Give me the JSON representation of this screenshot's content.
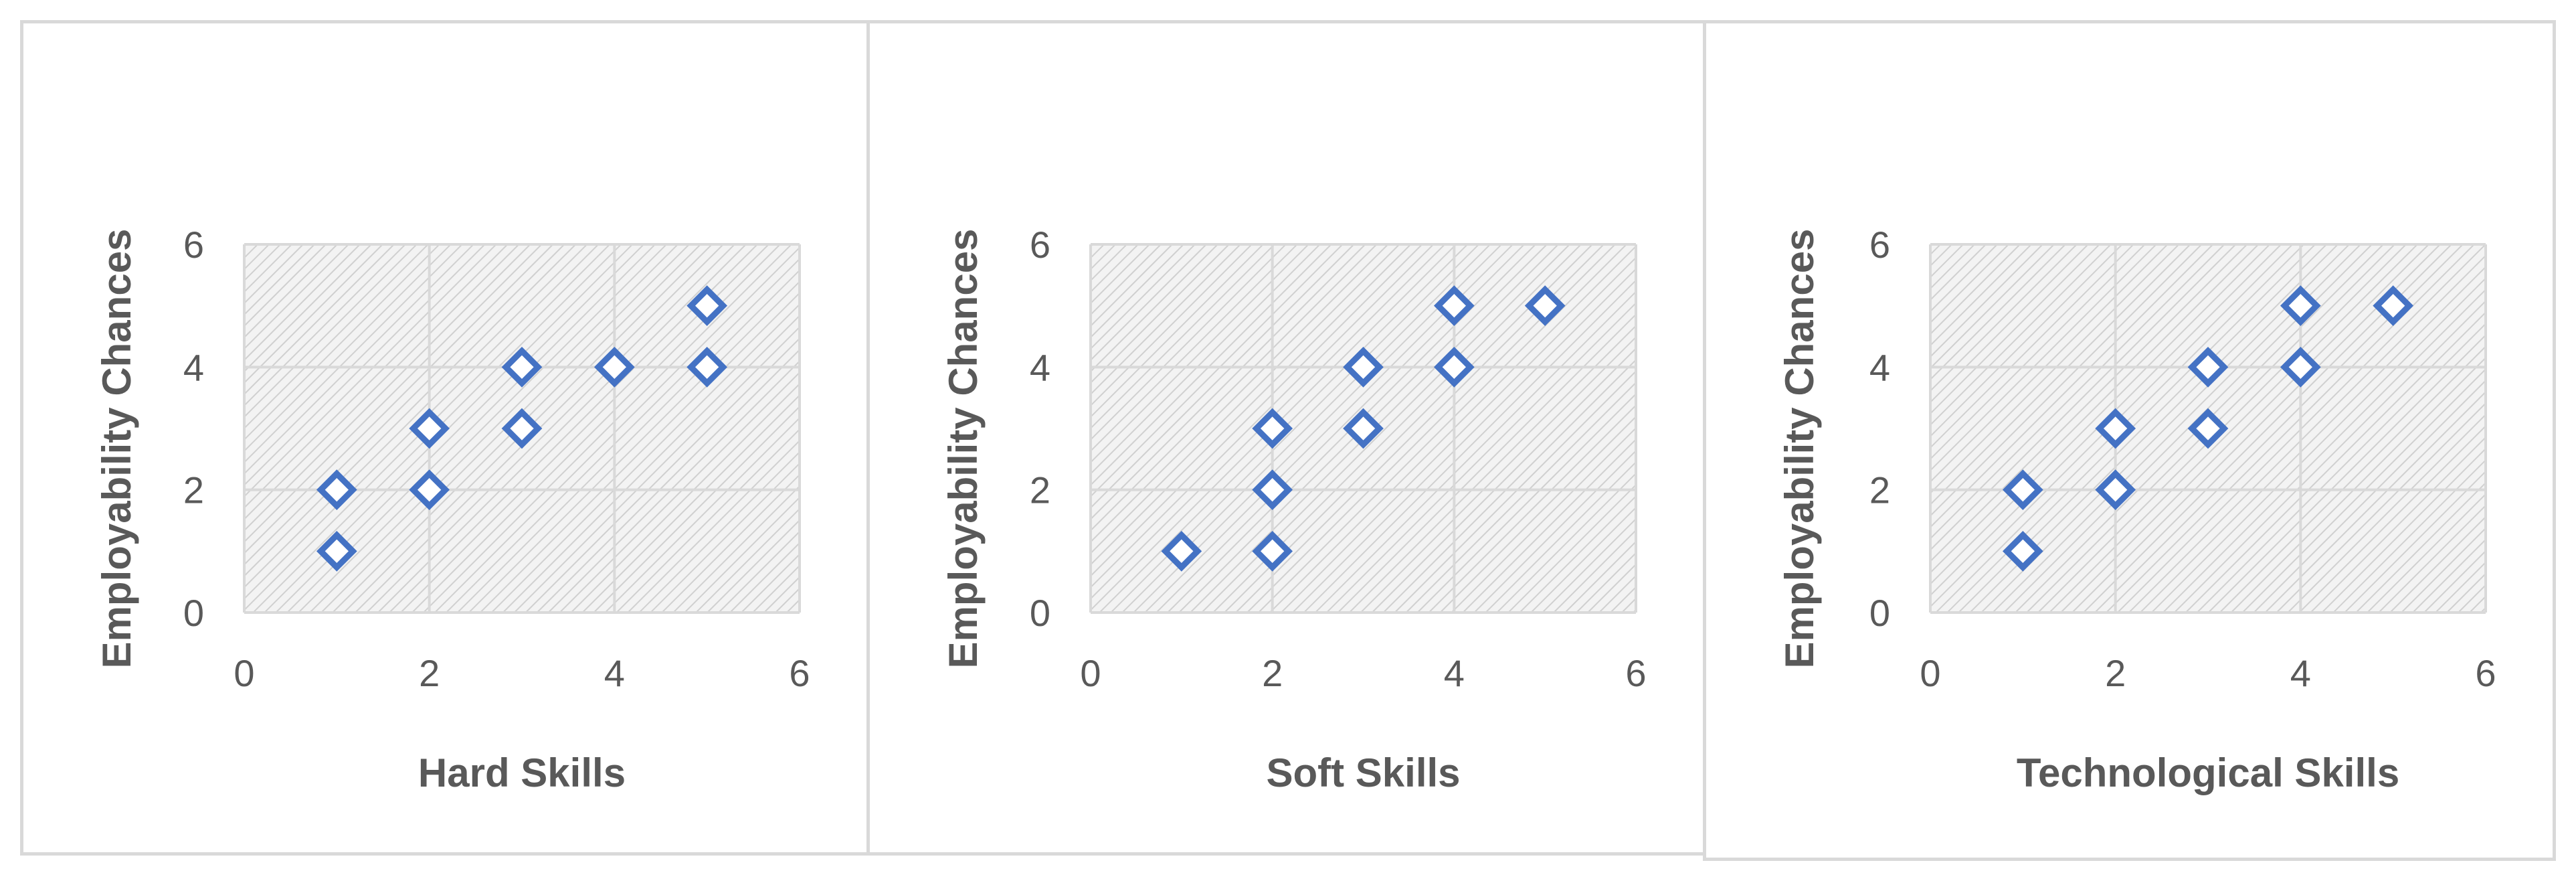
{
  "chart_data": [
    {
      "type": "scatter",
      "title": "",
      "xlabel": "Hard Skills",
      "ylabel": "Employability Chances",
      "xlim": [
        0,
        6
      ],
      "ylim": [
        0,
        6
      ],
      "xticks": [
        "0",
        "2",
        "4",
        "6"
      ],
      "yticks": [
        "0",
        "2",
        "4",
        "6"
      ],
      "grid": true,
      "marker": "diamond-open",
      "marker_color": "#4472C4",
      "plot_fill": "hatched-light-gray",
      "series": [
        {
          "x": [
            1,
            1,
            2,
            2,
            3,
            3,
            4,
            5,
            5
          ],
          "y": [
            1,
            2,
            2,
            3,
            3,
            4,
            4,
            4,
            5
          ]
        }
      ]
    },
    {
      "type": "scatter",
      "title": "",
      "xlabel": "Soft Skills",
      "ylabel": "Employability Chances",
      "xlim": [
        0,
        6
      ],
      "ylim": [
        0,
        6
      ],
      "xticks": [
        "0",
        "2",
        "4",
        "6"
      ],
      "yticks": [
        "0",
        "2",
        "4",
        "6"
      ],
      "grid": true,
      "marker": "diamond-open",
      "marker_color": "#4472C4",
      "plot_fill": "hatched-light-gray",
      "series": [
        {
          "x": [
            1,
            2,
            2,
            2,
            3,
            3,
            4,
            4,
            5
          ],
          "y": [
            1,
            1,
            2,
            3,
            3,
            4,
            4,
            5,
            5
          ]
        }
      ]
    },
    {
      "type": "scatter",
      "title": "",
      "xlabel": "Technological Skills",
      "ylabel": "Employability Chances",
      "xlim": [
        0,
        6
      ],
      "ylim": [
        0,
        6
      ],
      "xticks": [
        "0",
        "2",
        "4",
        "6"
      ],
      "yticks": [
        "0",
        "2",
        "4",
        "6"
      ],
      "grid": true,
      "marker": "diamond-open",
      "marker_color": "#4472C4",
      "plot_fill": "hatched-light-gray",
      "series": [
        {
          "x": [
            1,
            1,
            2,
            2,
            3,
            3,
            4,
            4,
            5
          ],
          "y": [
            1,
            2,
            2,
            3,
            3,
            4,
            4,
            5,
            5
          ]
        }
      ]
    }
  ]
}
